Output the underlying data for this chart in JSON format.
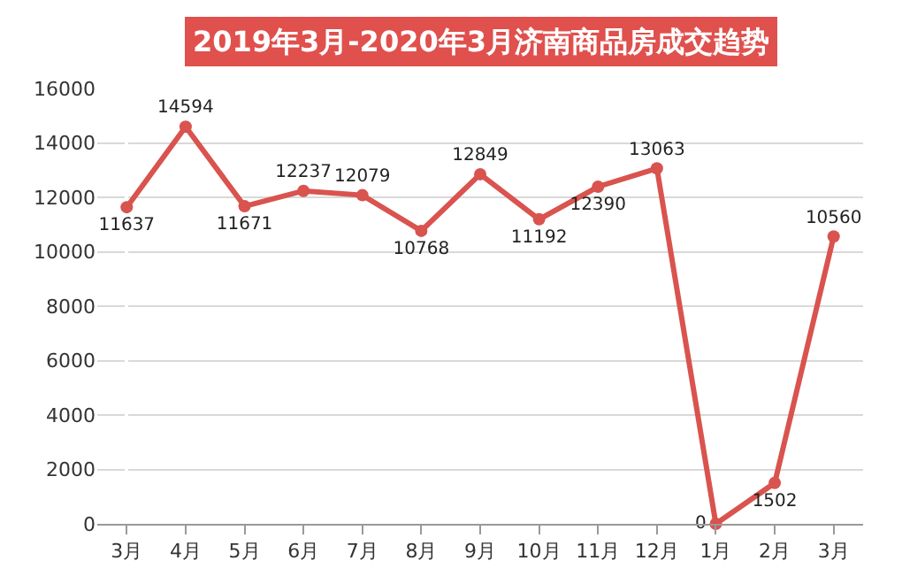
{
  "chart_data": {
    "type": "line",
    "title": "2019年3月-2020年3月济南商品房成交趋势",
    "categories": [
      "3月",
      "4月",
      "5月",
      "6月",
      "7月",
      "8月",
      "9月",
      "10月",
      "11月",
      "12月",
      "1月",
      "2月",
      "3月"
    ],
    "series": [
      {
        "color": "#d9534f",
        "values": [
          11637,
          14594,
          11671,
          12237,
          12079,
          10768,
          12849,
          11192,
          12390,
          13063,
          0,
          1502,
          10560
        ]
      }
    ],
    "ylim": [
      0,
      16000
    ],
    "yticks": [
      0,
      2000,
      4000,
      6000,
      8000,
      10000,
      12000,
      14000,
      16000
    ],
    "grid": "y",
    "marker": "circle",
    "line_style": "solid",
    "data_labels": true
  }
}
